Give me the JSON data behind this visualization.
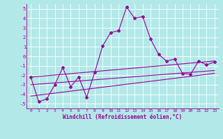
{
  "xlabel": "Windchill (Refroidissement éolien,°C)",
  "background_color": "#b2e8e8",
  "grid_color": "#c8e8e8",
  "line_color": "#990099",
  "xlim": [
    -0.5,
    23.5
  ],
  "ylim": [
    -5.5,
    5.5
  ],
  "yticks": [
    -5,
    -4,
    -3,
    -2,
    -1,
    0,
    1,
    2,
    3,
    4,
    5
  ],
  "xticks": [
    0,
    1,
    2,
    3,
    4,
    5,
    6,
    7,
    8,
    9,
    10,
    11,
    12,
    13,
    14,
    15,
    16,
    17,
    18,
    19,
    20,
    21,
    22,
    23
  ],
  "main_x": [
    0,
    1,
    2,
    3,
    4,
    5,
    6,
    7,
    8,
    9,
    10,
    11,
    12,
    13,
    14,
    15,
    16,
    17,
    18,
    19,
    20,
    21,
    22,
    23
  ],
  "main_y": [
    -2.2,
    -4.8,
    -4.5,
    -3.0,
    -1.2,
    -3.2,
    -2.2,
    -4.3,
    -1.7,
    1.1,
    2.5,
    2.7,
    5.2,
    4.0,
    4.2,
    1.8,
    0.2,
    -0.5,
    -0.3,
    -1.8,
    -1.9,
    -0.5,
    -0.9,
    -0.6
  ],
  "line1_x": [
    0,
    23
  ],
  "line1_y": [
    -2.2,
    -0.5
  ],
  "line2_x": [
    0,
    23
  ],
  "line2_y": [
    -3.0,
    -1.5
  ],
  "line3_x": [
    0,
    23
  ],
  "line3_y": [
    -4.2,
    -1.8
  ]
}
